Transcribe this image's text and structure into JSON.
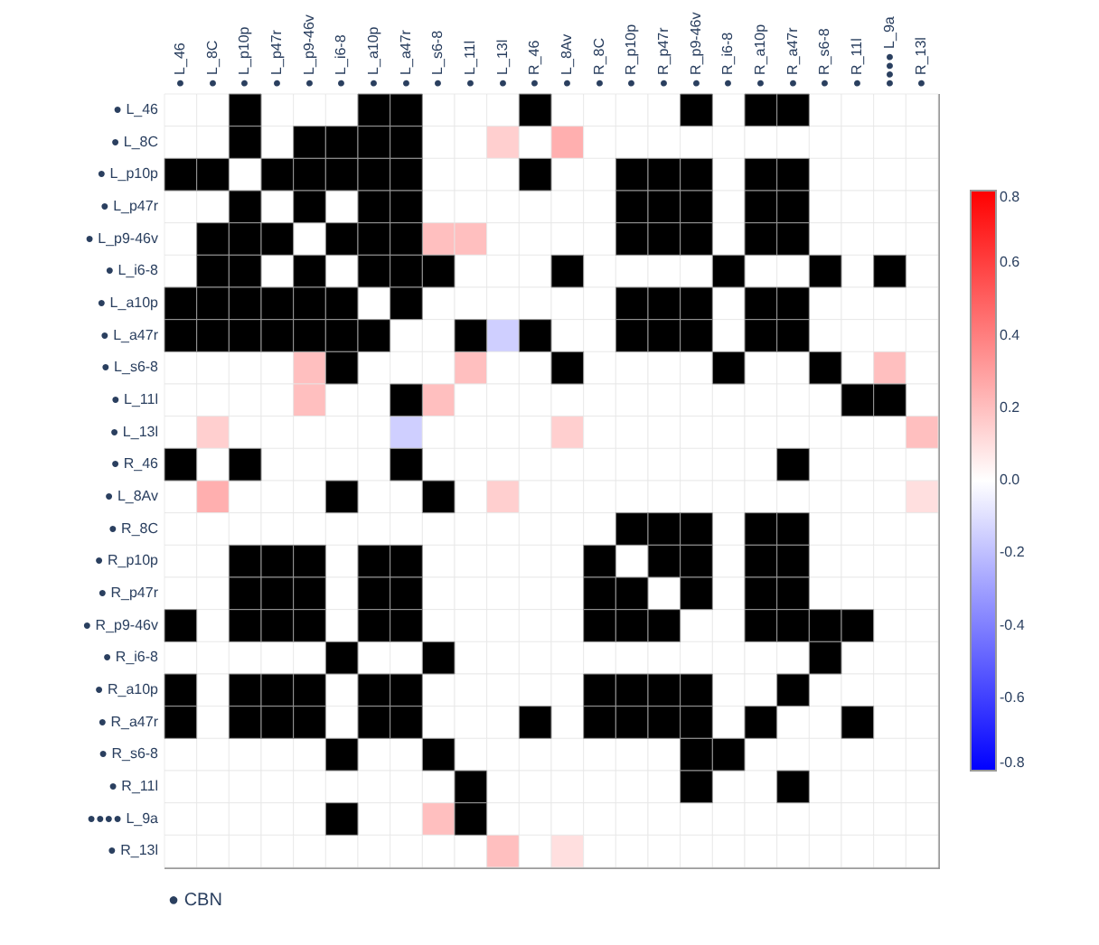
{
  "chart_data": {
    "type": "heatmap",
    "categories": [
      "● L_46",
      "● L_8C",
      "● L_p10p",
      "● L_p47r",
      "● L_p9-46v",
      "● L_i6-8",
      "● L_a10p",
      "● L_a47r",
      "● L_s6-8",
      "● L_11l",
      "● L_13l",
      "● R_46",
      "● L_8Av",
      "● R_8C",
      "● R_p10p",
      "● R_p47r",
      "● R_p9-46v",
      "● R_i6-8",
      "● R_a10p",
      "● R_a47r",
      "● R_s6-8",
      "● R_11l",
      "●●●● L_9a",
      "● R_13l"
    ],
    "y_categories": [
      "● L_46",
      "● L_8C",
      "● L_p10p",
      "● L_p47r",
      "● L_p9-46v",
      "● L_i6-8",
      "● L_a10p",
      "● L_a47r",
      "● L_s6-8",
      "● L_11l",
      "● L_13l",
      "● R_46",
      "● L_8Av",
      "● R_8C",
      "● R_p10p",
      "● R_p47r",
      "● R_p9-46v",
      "● R_i6-8",
      "● R_a10p",
      "● R_a47r",
      "● R_s6-8",
      "● R_11l",
      "●●●● L_9a",
      "● R_13l"
    ],
    "cells": [
      [
        0,
        0,
        null,
        0,
        0,
        0,
        null,
        null,
        0,
        0,
        0,
        null,
        0,
        0,
        0,
        0,
        null,
        0,
        null,
        null,
        0,
        0,
        0,
        0
      ],
      [
        0,
        0,
        null,
        0,
        null,
        null,
        null,
        null,
        0,
        0,
        0.15,
        0,
        0.25,
        0,
        0,
        0,
        0,
        0,
        0,
        0,
        0,
        0,
        0,
        0
      ],
      [
        null,
        null,
        0,
        null,
        null,
        null,
        null,
        null,
        0,
        0,
        0,
        null,
        0,
        0,
        null,
        null,
        null,
        0,
        null,
        null,
        0,
        0,
        0,
        0
      ],
      [
        0,
        0,
        null,
        0,
        null,
        0,
        null,
        null,
        0,
        0,
        0,
        0,
        0,
        0,
        null,
        null,
        null,
        0,
        null,
        null,
        0,
        0,
        0,
        0
      ],
      [
        0,
        null,
        null,
        null,
        0,
        null,
        null,
        null,
        0.2,
        0.2,
        0,
        0,
        0,
        0,
        null,
        null,
        null,
        0,
        null,
        null,
        0,
        0,
        0,
        0
      ],
      [
        0,
        null,
        null,
        0,
        null,
        0,
        null,
        null,
        null,
        0,
        0,
        0,
        null,
        0,
        0,
        0,
        0,
        null,
        0,
        0,
        null,
        0,
        null,
        0
      ],
      [
        null,
        null,
        null,
        null,
        null,
        null,
        0,
        null,
        0,
        0,
        0,
        0,
        0,
        0,
        null,
        null,
        null,
        0,
        null,
        null,
        0,
        0,
        0,
        0
      ],
      [
        null,
        null,
        null,
        null,
        null,
        null,
        null,
        0,
        0,
        null,
        -0.15,
        null,
        0,
        0,
        null,
        null,
        null,
        0,
        null,
        null,
        0,
        0,
        0,
        0
      ],
      [
        0,
        0,
        0,
        0,
        0.2,
        null,
        0,
        0,
        0,
        0.2,
        0,
        0,
        null,
        0,
        0,
        0,
        0,
        null,
        0,
        0,
        null,
        0,
        0.2,
        0
      ],
      [
        0,
        0,
        0,
        0,
        0.2,
        0,
        0,
        null,
        0.2,
        0,
        0,
        0,
        0,
        0,
        0,
        0,
        0,
        0,
        0,
        0,
        0,
        null,
        null,
        0
      ],
      [
        0,
        0.15,
        0,
        0,
        0,
        0,
        0,
        -0.15,
        0,
        0,
        0,
        0,
        0.15,
        0,
        0,
        0,
        0,
        0,
        0,
        0,
        0,
        0,
        0,
        0.2
      ],
      [
        null,
        0,
        null,
        0,
        0,
        0,
        0,
        null,
        0,
        0,
        0,
        0,
        0,
        0,
        0,
        0,
        0,
        0,
        0,
        null,
        0,
        0,
        0,
        0
      ],
      [
        0,
        0.25,
        0,
        0,
        0,
        null,
        0,
        0,
        null,
        0,
        0.15,
        0,
        0,
        0,
        0,
        0,
        0,
        0,
        0,
        0,
        0,
        0,
        0,
        0.1
      ],
      [
        0,
        0,
        0,
        0,
        0,
        0,
        0,
        0,
        0,
        0,
        0,
        0,
        0,
        0,
        null,
        null,
        null,
        0,
        null,
        null,
        0,
        0,
        0,
        0
      ],
      [
        0,
        0,
        null,
        null,
        null,
        0,
        null,
        null,
        0,
        0,
        0,
        0,
        0,
        null,
        0,
        null,
        null,
        0,
        null,
        null,
        0,
        0,
        0,
        0
      ],
      [
        0,
        0,
        null,
        null,
        null,
        0,
        null,
        null,
        0,
        0,
        0,
        0,
        0,
        null,
        null,
        0,
        null,
        0,
        null,
        null,
        0,
        0,
        0,
        0
      ],
      [
        null,
        0,
        null,
        null,
        null,
        0,
        null,
        null,
        0,
        0,
        0,
        0,
        0,
        null,
        null,
        null,
        0,
        0,
        null,
        null,
        null,
        null,
        0,
        0
      ],
      [
        0,
        0,
        0,
        0,
        0,
        null,
        0,
        0,
        null,
        0,
        0,
        0,
        0,
        0,
        0,
        0,
        0,
        0,
        0,
        0,
        null,
        0,
        0,
        0
      ],
      [
        null,
        0,
        null,
        null,
        null,
        0,
        null,
        null,
        0,
        0,
        0,
        0,
        0,
        null,
        null,
        null,
        null,
        0,
        0,
        null,
        0,
        0,
        0,
        0
      ],
      [
        null,
        0,
        null,
        null,
        null,
        0,
        null,
        null,
        0,
        0,
        0,
        null,
        0,
        null,
        null,
        null,
        null,
        0,
        null,
        0,
        0,
        null,
        0,
        0
      ],
      [
        0,
        0,
        0,
        0,
        0,
        null,
        0,
        0,
        null,
        0,
        0,
        0,
        0,
        0,
        0,
        0,
        null,
        null,
        0,
        0,
        0,
        0,
        0,
        0
      ],
      [
        0,
        0,
        0,
        0,
        0,
        0,
        0,
        0,
        0,
        null,
        0,
        0,
        0,
        0,
        0,
        0,
        null,
        0,
        0,
        null,
        0,
        0,
        0,
        0
      ],
      [
        0,
        0,
        0,
        0,
        0,
        null,
        0,
        0,
        0.2,
        null,
        0,
        0,
        0,
        0,
        0,
        0,
        0,
        0,
        0,
        0,
        0,
        0,
        0,
        0
      ],
      [
        0,
        0,
        0,
        0,
        0,
        0,
        0,
        0,
        0,
        0,
        0.2,
        0,
        0.1,
        0,
        0,
        0,
        0,
        0,
        0,
        0,
        0,
        0,
        0,
        0
      ]
    ],
    "clim": [
      -0.8,
      0.8
    ],
    "cticks": [
      0.8,
      0.6,
      0.4,
      0.2,
      {
        "value": 0,
        "label": "0.0"
      },
      -0.2,
      -0.4,
      -0.6,
      -0.8
    ],
    "annotations": [
      "● CBN"
    ]
  }
}
